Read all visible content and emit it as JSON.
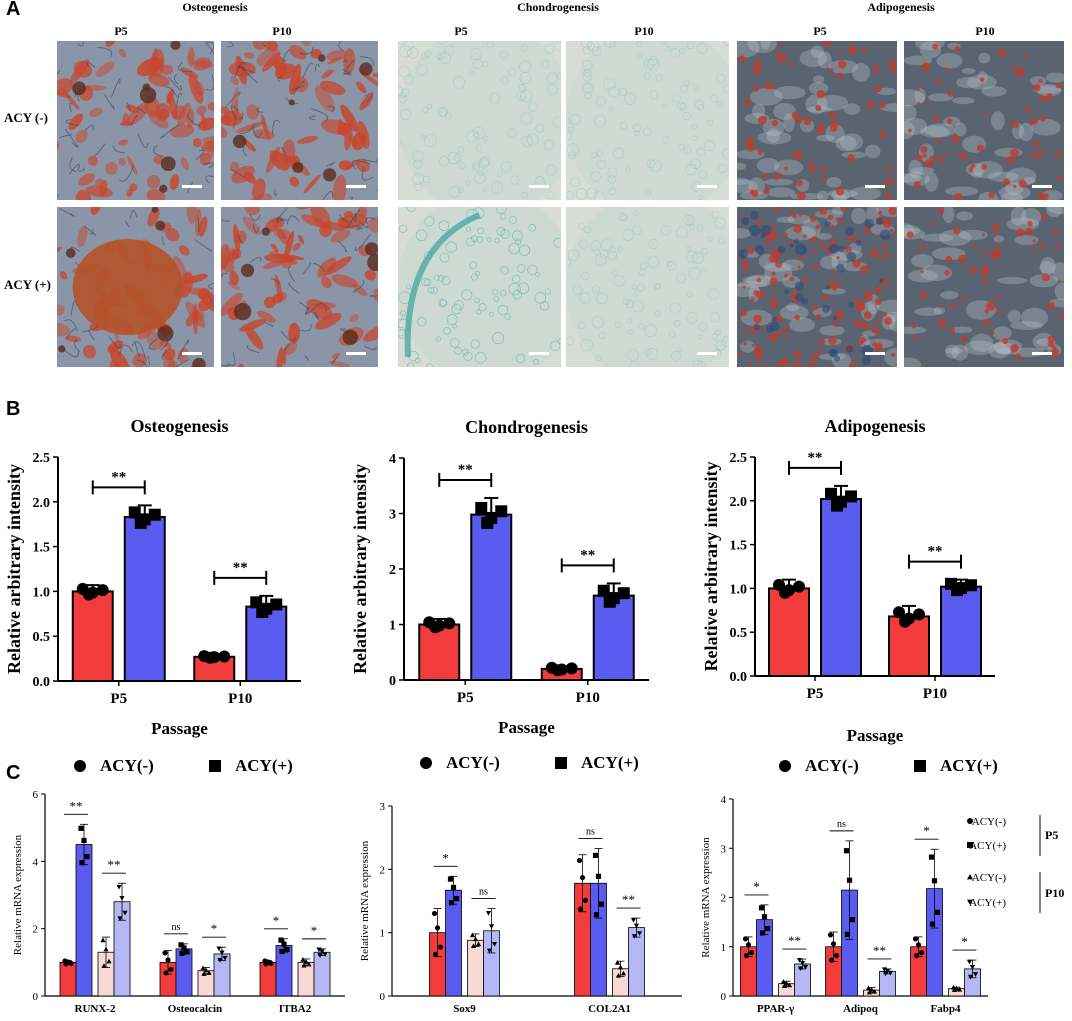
{
  "panels": {
    "A": "A",
    "B": "B",
    "C": "C"
  },
  "panel_a": {
    "groups": [
      {
        "title": "Osteogenesis",
        "cols": [
          "P5",
          "P10"
        ]
      },
      {
        "title": "Chondrogenesis",
        "cols": [
          "P5",
          "P10"
        ]
      },
      {
        "title": "Adipogenesis",
        "cols": [
          "P5",
          "P10"
        ]
      }
    ],
    "rows": [
      "ACY (-)",
      "ACY (+)"
    ],
    "image_colors": {
      "osteo_bg": "#8a96a8",
      "osteo_stain": "#c9442a",
      "chondro_bg": "#d8dcd6",
      "chondro_stain": "#6fb7b3",
      "adipo_bg": "#5a6470",
      "adipo_stain": "#c0392b"
    }
  },
  "colors": {
    "acy_neg": "#f23b3b",
    "acy_pos": "#5a5cf0",
    "acy_neg_p10": "#f9d9d6",
    "acy_pos_p10": "#b6b8f5"
  },
  "chart_data": [
    {
      "id": "b-osteo",
      "type": "bar",
      "title": "Osteogenesis",
      "xlabel": "Passage",
      "ylabel": "Relative arbitrary intensity",
      "categories": [
        "P5",
        "P10"
      ],
      "ylim": [
        0,
        2.5
      ],
      "yticks": [
        "0.0",
        "0.5",
        "1.0",
        "1.5",
        "2.0",
        "2.5"
      ],
      "series": [
        {
          "name": "ACY(-)",
          "values": [
            1.0,
            0.27
          ],
          "err": [
            0.07,
            0.02
          ]
        },
        {
          "name": "ACY(+)",
          "values": [
            1.83,
            0.83
          ],
          "err": [
            0.13,
            0.12
          ]
        }
      ],
      "significance": [
        "**",
        "**"
      ],
      "legend": [
        "ACY(-)",
        "ACY(+)"
      ]
    },
    {
      "id": "b-chondro",
      "type": "bar",
      "title": "Chondrogenesis",
      "xlabel": "Passage",
      "ylabel": "Relative arbitrary intensity",
      "categories": [
        "P5",
        "P10"
      ],
      "ylim": [
        0,
        4
      ],
      "yticks": [
        "0",
        "1",
        "2",
        "3",
        "4"
      ],
      "series": [
        {
          "name": "ACY(-)",
          "values": [
            1.0,
            0.2
          ],
          "err": [
            0.1,
            0.05
          ]
        },
        {
          "name": "ACY(+)",
          "values": [
            2.98,
            1.52
          ],
          "err": [
            0.3,
            0.22
          ]
        }
      ],
      "significance": [
        "**",
        "**"
      ],
      "legend": [
        "ACY(-)",
        "ACY(+)"
      ]
    },
    {
      "id": "b-adipo",
      "type": "bar",
      "title": "Adipogenesis",
      "xlabel": "Passage",
      "ylabel": "Relative arbitrary intensity",
      "categories": [
        "P5",
        "P10"
      ],
      "ylim": [
        0,
        2.5
      ],
      "yticks": [
        "0.0",
        "0.5",
        "1.0",
        "1.5",
        "2.0",
        "2.5"
      ],
      "series": [
        {
          "name": "ACY(-)",
          "values": [
            1.0,
            0.68
          ],
          "err": [
            0.1,
            0.12
          ]
        },
        {
          "name": "ACY(+)",
          "values": [
            2.02,
            1.02
          ],
          "err": [
            0.15,
            0.08
          ]
        }
      ],
      "significance": [
        "**",
        "**"
      ],
      "legend": [
        "ACY(-)",
        "ACY(+)"
      ]
    },
    {
      "id": "c-osteo",
      "type": "bar",
      "ylabel": "Relative mRNA expression",
      "categories": [
        "RUNX-2",
        "Osteocalcin",
        "ITBA2"
      ],
      "ylim": [
        0,
        6
      ],
      "yticks": [
        "0",
        "2",
        "4",
        "6"
      ],
      "series": [
        {
          "name": "ACY(-) P5",
          "values": [
            1.0,
            1.0,
            1.0
          ],
          "err": [
            0.05,
            0.35,
            0.05
          ]
        },
        {
          "name": "ACY(+) P5",
          "values": [
            4.5,
            1.4,
            1.5
          ],
          "err": [
            0.6,
            0.15,
            0.2
          ]
        },
        {
          "name": "ACY(-) P10",
          "values": [
            1.3,
            0.75,
            1.0
          ],
          "err": [
            0.45,
            0.1,
            0.1
          ]
        },
        {
          "name": "ACY(+) P10",
          "values": [
            2.8,
            1.25,
            1.3
          ],
          "err": [
            0.55,
            0.2,
            0.1
          ]
        }
      ],
      "significance": [
        [
          "**",
          "**"
        ],
        [
          "ns",
          "*"
        ],
        [
          "*",
          "*"
        ]
      ]
    },
    {
      "id": "c-chondro",
      "type": "bar",
      "ylabel": "Relative mRNA expression",
      "categories": [
        "Sox9",
        "COL2A1"
      ],
      "ylim": [
        0,
        3
      ],
      "yticks": [
        "0",
        "1",
        "2",
        "3"
      ],
      "series": [
        {
          "name": "ACY(-) P5",
          "values": [
            1.0,
            1.78
          ],
          "err": [
            0.38,
            0.45
          ]
        },
        {
          "name": "ACY(+) P5",
          "values": [
            1.67,
            1.78
          ],
          "err": [
            0.22,
            0.55
          ]
        },
        {
          "name": "ACY(-) P10",
          "values": [
            0.88,
            0.43
          ],
          "err": [
            0.1,
            0.12
          ]
        },
        {
          "name": "ACY(+) P10",
          "values": [
            1.03,
            1.08
          ],
          "err": [
            0.35,
            0.15
          ]
        }
      ],
      "significance": [
        [
          "*",
          "ns"
        ],
        [
          "ns",
          "**"
        ]
      ]
    },
    {
      "id": "c-adipo",
      "type": "bar",
      "ylabel": "Relative mRNA expression",
      "categories": [
        "PPAR-γ",
        "Adipoq",
        "Fabp4"
      ],
      "ylim": [
        0,
        4
      ],
      "yticks": [
        "0",
        "1",
        "2",
        "3",
        "4"
      ],
      "series": [
        {
          "name": "ACY(-) P5",
          "values": [
            1.0,
            1.0,
            1.0
          ],
          "err": [
            0.2,
            0.3,
            0.2
          ]
        },
        {
          "name": "ACY(+) P5",
          "values": [
            1.55,
            2.15,
            2.18
          ],
          "err": [
            0.3,
            1.0,
            0.8
          ]
        },
        {
          "name": "ACY(-) P10",
          "values": [
            0.25,
            0.12,
            0.15
          ],
          "err": [
            0.05,
            0.05,
            0.03
          ]
        },
        {
          "name": "ACY(+) P10",
          "values": [
            0.65,
            0.5,
            0.55
          ],
          "err": [
            0.1,
            0.05,
            0.18
          ]
        }
      ],
      "significance": [
        [
          "*",
          "**"
        ],
        [
          "ns",
          "**"
        ],
        [
          "*",
          "*"
        ]
      ],
      "legend": {
        "items": [
          "ACY(-)",
          "ACY(+)",
          "ACY(-)",
          "ACY(+)"
        ],
        "groups": [
          "P5",
          "P10"
        ]
      }
    }
  ]
}
